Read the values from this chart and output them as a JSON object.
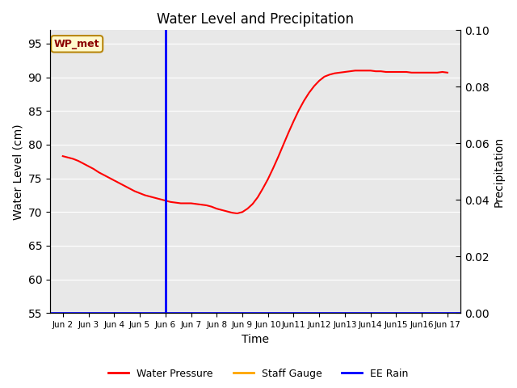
{
  "title": "Water Level and Precipitation",
  "xlabel": "Time",
  "ylabel_left": "Water Level (cm)",
  "ylabel_right": "Precipitation",
  "annotation_text": "WP_met",
  "annotation_color": "#8B0000",
  "annotation_bg": "#FFFACD",
  "annotation_border": "#B8860B",
  "ylim_left": [
    55,
    97
  ],
  "ylim_right": [
    0.0,
    0.1
  ],
  "yticks_left": [
    55,
    60,
    65,
    70,
    75,
    80,
    85,
    90,
    95
  ],
  "yticks_right": [
    0.0,
    0.02,
    0.04,
    0.06,
    0.08,
    0.1
  ],
  "bg_color": "#e8e8e8",
  "vline_color": "blue",
  "vline_lw": 2.0,
  "water_pressure_color": "red",
  "water_pressure_lw": 1.5,
  "staff_gauge_color": "orange",
  "ee_rain_color": "blue",
  "legend_labels": [
    "Water Pressure",
    "Staff Gauge",
    "EE Rain"
  ],
  "x_tick_labels": [
    "Jun 2",
    "Jun 3",
    "Jun 4",
    "Jun 5",
    "Jun 6",
    "Jun 7",
    "Jun 8",
    "Jun 9",
    "Jun 10",
    "Jun 11",
    "Jun 12",
    "Jun 13",
    "Jun 14",
    "Jun 15",
    "Jun 16",
    "Jun 17"
  ],
  "x_tick_labels_display": [
    "Jun 2",
    "Jun 3",
    "Jun 4",
    "Jun 5",
    "Jun 6",
    "Jun 7",
    "Jun 8",
    "Jun 9",
    "Jun 10",
    "Jun11",
    "Jun12",
    "Jun13",
    "Jun14",
    "Jun15",
    "Jun16",
    "Jun 17"
  ],
  "water_pressure_x": [
    0,
    0.2,
    0.4,
    0.6,
    0.8,
    1.0,
    1.2,
    1.4,
    1.6,
    1.8,
    2.0,
    2.2,
    2.4,
    2.6,
    2.8,
    3.0,
    3.2,
    3.4,
    3.6,
    3.8,
    4.0,
    4.2,
    4.4,
    4.6,
    4.8,
    5.0,
    5.2,
    5.4,
    5.6,
    5.8,
    6.0,
    6.2,
    6.4,
    6.6,
    6.8,
    7.0,
    7.2,
    7.4,
    7.6,
    7.8,
    8.0,
    8.2,
    8.4,
    8.6,
    8.8,
    9.0,
    9.2,
    9.4,
    9.6,
    9.8,
    10.0,
    10.2,
    10.4,
    10.6,
    10.8,
    11.0,
    11.2,
    11.4,
    11.6,
    11.8,
    12.0,
    12.2,
    12.4,
    12.6,
    12.8,
    13.0,
    13.2,
    13.4,
    13.6,
    13.8,
    14.0,
    14.2,
    14.4,
    14.6,
    14.8,
    15.0
  ],
  "water_pressure_y": [
    78.3,
    78.1,
    77.9,
    77.6,
    77.2,
    76.8,
    76.4,
    75.9,
    75.5,
    75.1,
    74.7,
    74.3,
    73.9,
    73.5,
    73.1,
    72.8,
    72.5,
    72.3,
    72.1,
    71.9,
    71.7,
    71.5,
    71.4,
    71.3,
    71.3,
    71.3,
    71.2,
    71.1,
    71.0,
    70.8,
    70.5,
    70.3,
    70.1,
    69.9,
    69.8,
    70.0,
    70.5,
    71.2,
    72.2,
    73.5,
    74.9,
    76.5,
    78.2,
    80.0,
    81.8,
    83.5,
    85.1,
    86.5,
    87.7,
    88.7,
    89.5,
    90.1,
    90.4,
    90.6,
    90.7,
    90.8,
    90.9,
    91.0,
    91.0,
    91.0,
    91.0,
    90.9,
    90.9,
    90.8,
    90.8,
    90.8,
    90.8,
    90.8,
    90.7,
    90.7,
    90.7,
    90.7,
    90.7,
    90.7,
    90.8,
    90.7
  ],
  "hline_color": "blue",
  "hline_lw": 1.2,
  "grid_color": "white",
  "grid_lw": 0.8,
  "figsize": [
    6.4,
    4.8
  ],
  "dpi": 100
}
